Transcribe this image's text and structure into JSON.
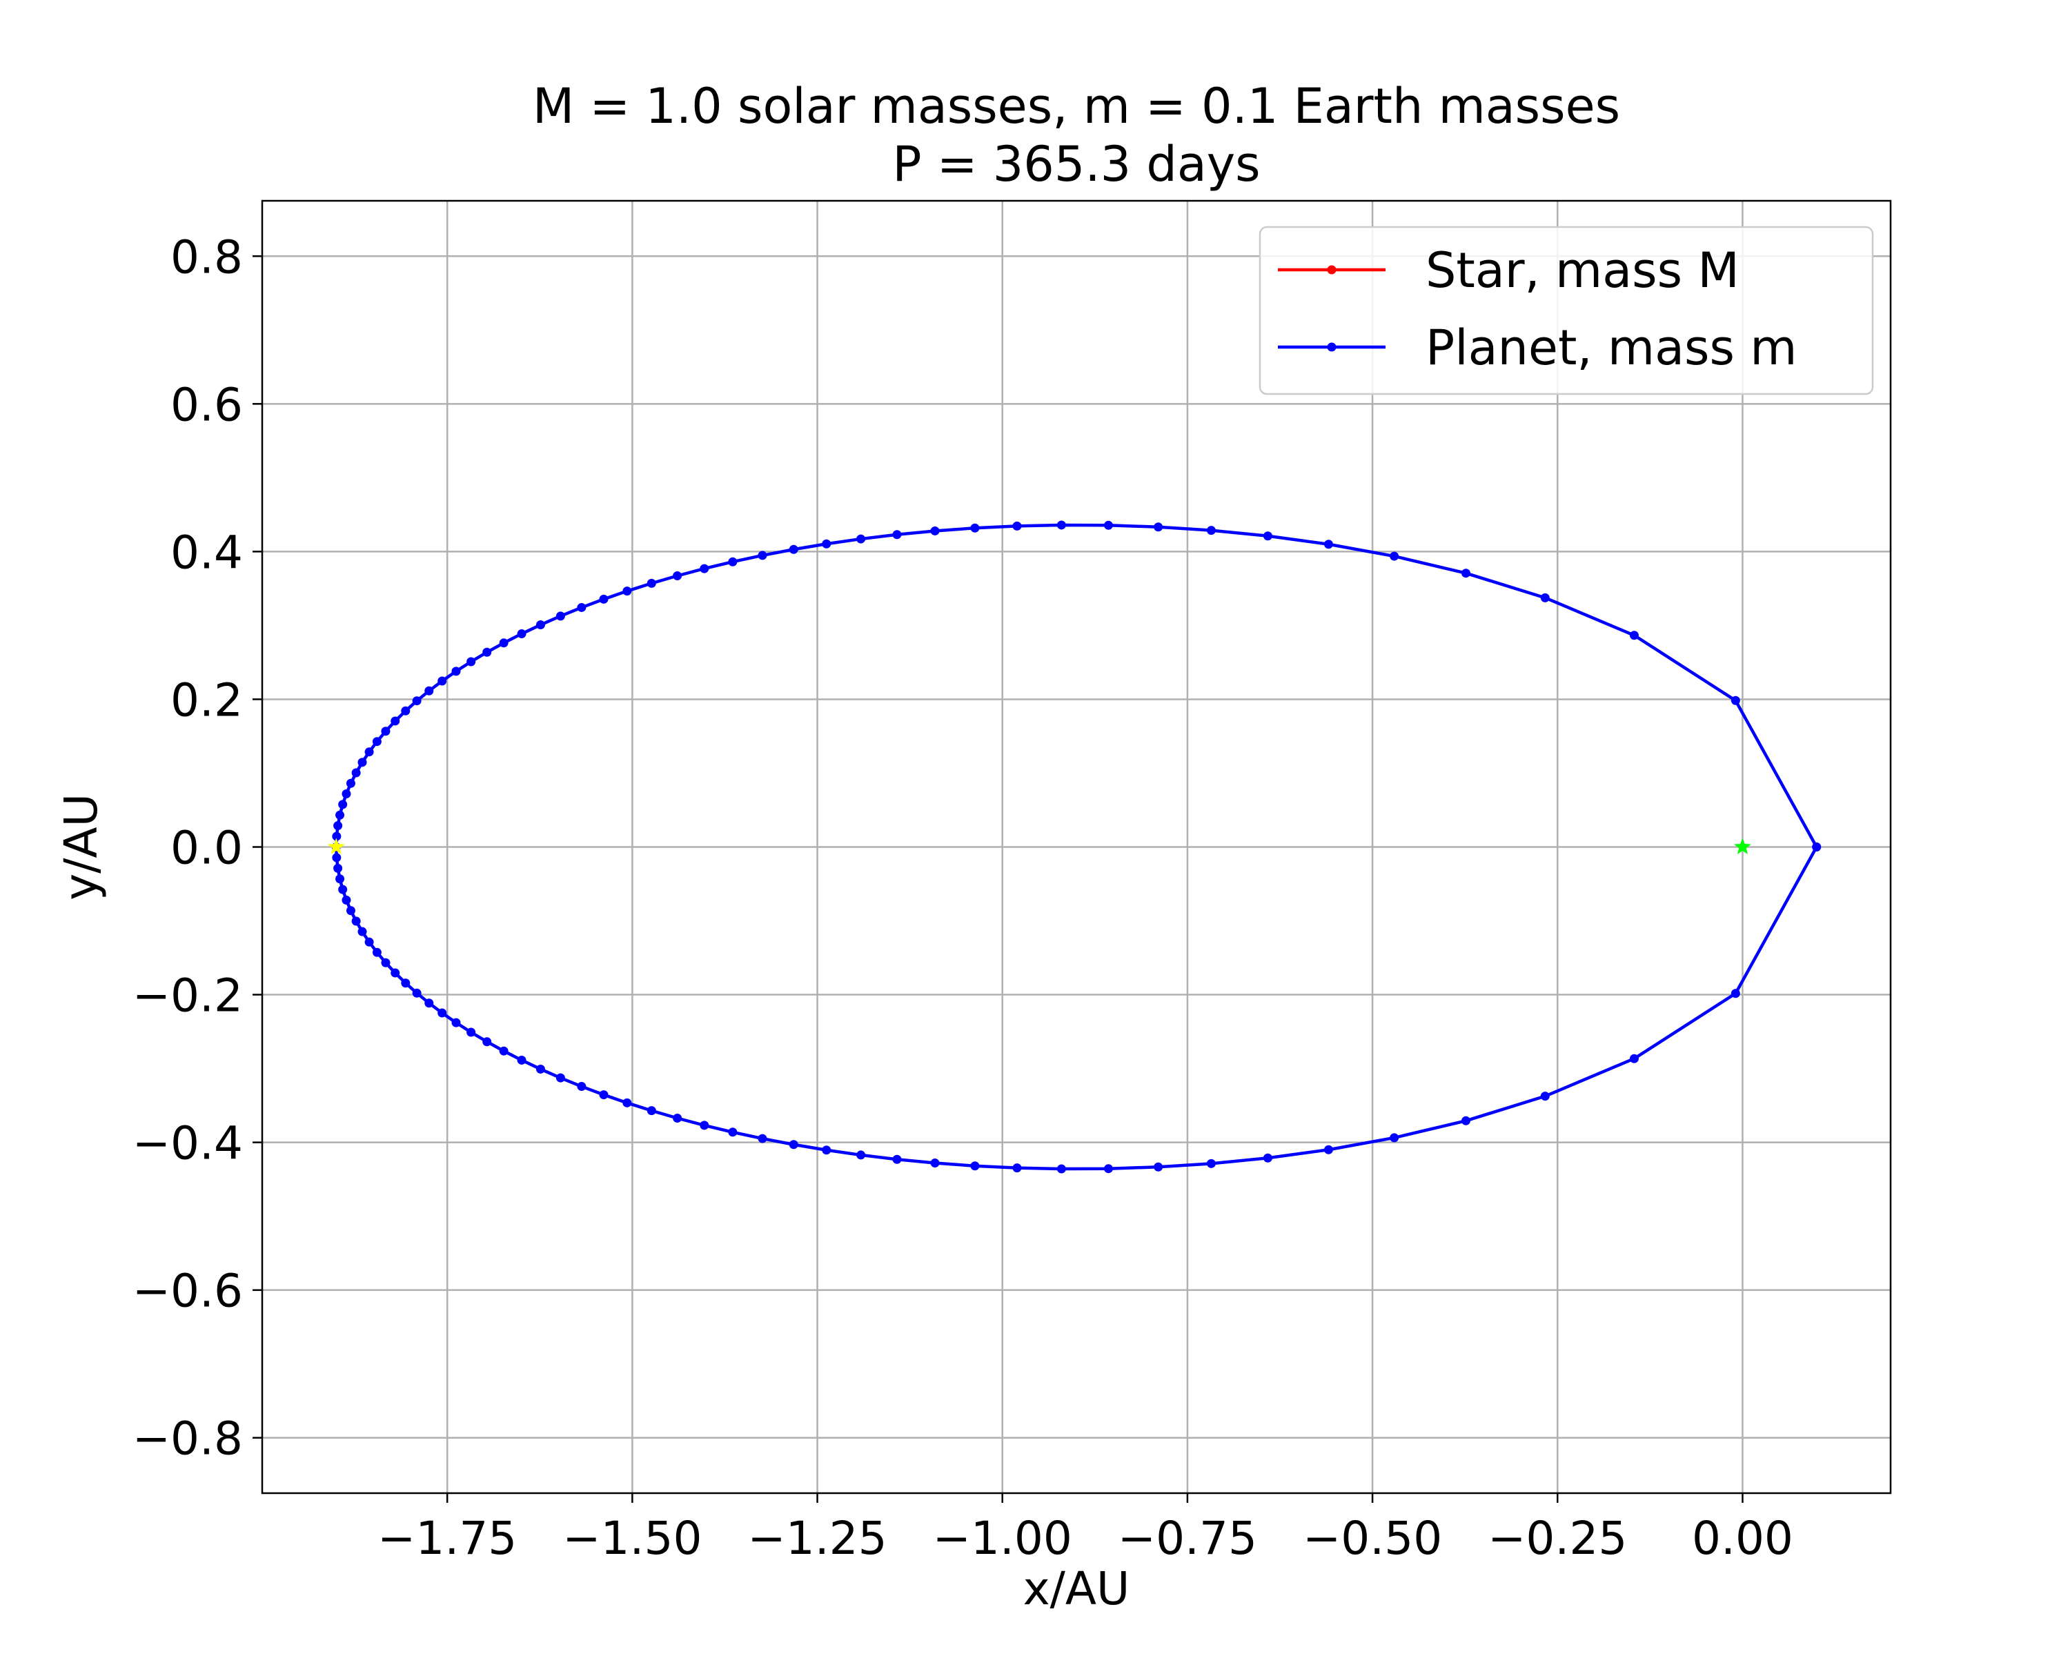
{
  "chart_data": {
    "type": "line",
    "title": "M = 1.0 solar masses, m = 0.1 Earth masses",
    "subtitle": "P = 365.3 days",
    "xlabel": "x/AU",
    "ylabel": "y/AU",
    "xlim": [
      -2.0,
      0.2
    ],
    "ylim": [
      -0.875,
      0.875
    ],
    "xticks": [
      -1.75,
      -1.5,
      -1.25,
      -1.0,
      -0.75,
      -0.5,
      -0.25,
      0.0
    ],
    "xtick_labels": [
      "−1.75",
      "−1.50",
      "−1.25",
      "−1.00",
      "−0.75",
      "−0.50",
      "−0.25",
      "0.00"
    ],
    "yticks": [
      0.8,
      0.6,
      0.4,
      0.2,
      0.0,
      -0.2,
      -0.4,
      -0.6,
      -0.8
    ],
    "ytick_labels": [
      "0.8",
      "0.6",
      "0.4",
      "0.2",
      "0.0",
      "−0.2",
      "−0.4",
      "−0.6",
      "−0.8"
    ],
    "grid": true,
    "legend_position": "top-right",
    "series": [
      {
        "name": "Star, mass M",
        "color": "#ff0000",
        "marker": "dot",
        "points": []
      },
      {
        "name": "Planet, mass m",
        "color": "#0000ff",
        "marker": "dot",
        "orbit": {
          "center_x": -0.9,
          "semi_major_axis": 1.0,
          "semi_minor_axis": 0.436,
          "eccentricity": 0.9,
          "num_points": 100
        }
      }
    ],
    "annotations": [
      {
        "name": "aphelion-star-marker",
        "x": -1.9,
        "y": 0.0,
        "color": "#ffff00",
        "marker": "star"
      },
      {
        "name": "focus-star-marker",
        "x": 0.0,
        "y": 0.0,
        "color": "#00ff00",
        "marker": "star"
      }
    ]
  }
}
